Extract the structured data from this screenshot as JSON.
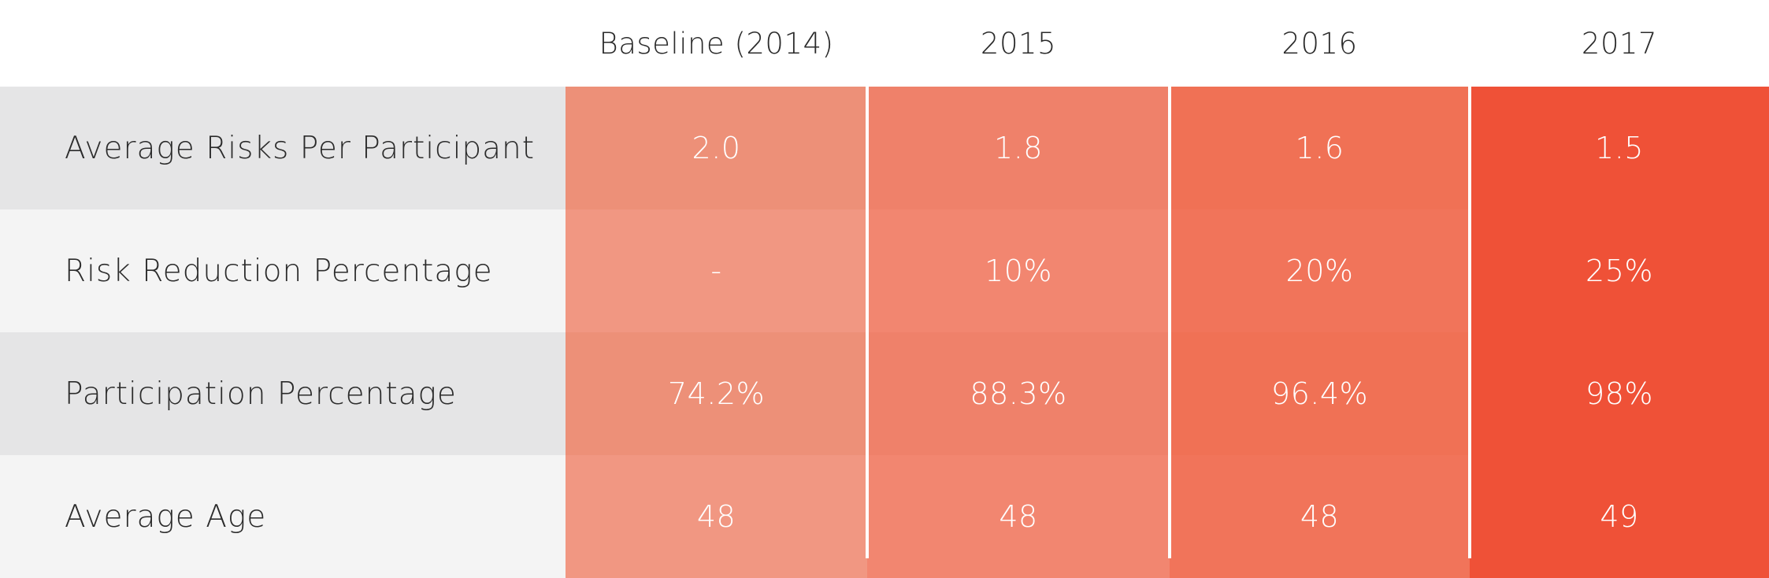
{
  "chart_data": {
    "type": "table",
    "columns": [
      "",
      "Baseline (2014)",
      "2015",
      "2016",
      "2017"
    ],
    "rows": [
      {
        "label": "Average Risks Per Participant",
        "values": [
          "2.0",
          "1.8",
          "1.6",
          "1.5"
        ]
      },
      {
        "label": "Risk Reduction Percentage",
        "values": [
          "-",
          "10%",
          "20%",
          "25%"
        ]
      },
      {
        "label": "Participation Percentage",
        "values": [
          "74.2%",
          "88.3%",
          "96.4%",
          "98%"
        ]
      },
      {
        "label": "Average Age",
        "values": [
          "48",
          "48",
          "48",
          "49"
        ]
      }
    ],
    "colors": {
      "column_dark": [
        "#ed9078",
        "#ef816a",
        "#f07155",
        "#ef5137"
      ],
      "column_light": [
        "#f19782",
        "#f28670",
        "#f1745a",
        "#ef5137"
      ],
      "row_label_dark": "#e5e5e6",
      "row_label_light": "#f4f4f4"
    }
  }
}
